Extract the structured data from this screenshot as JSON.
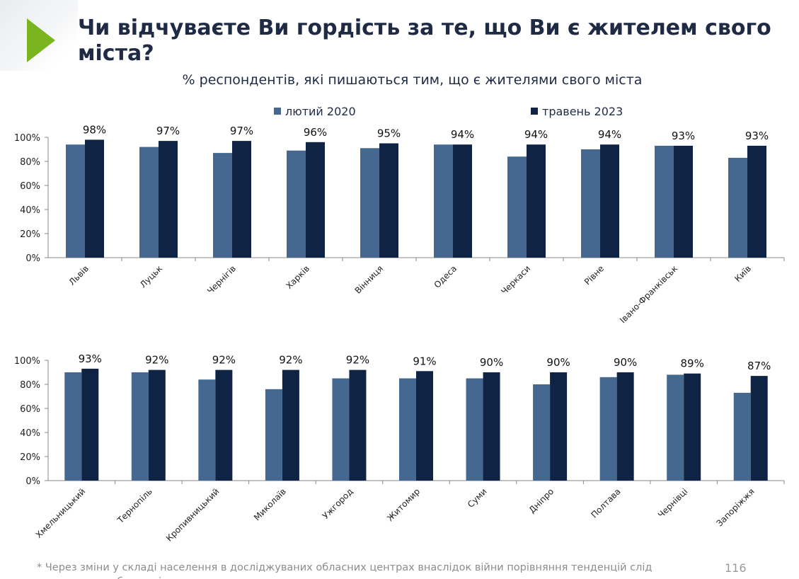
{
  "title": "Чи відчуваєте Ви гордість за те, що Ви є жителем свого міста?",
  "subtitle": "% респондентів, які пишаються тим, що є жителями свого міста",
  "footnote": "* Через зміни у складі населення в досліджуваних обласних центрах внаслідок війни порівняння тенденцій слід трактувати з обережністю",
  "page_number": "116",
  "colors": {
    "series_2020": "#44688f",
    "series_2023": "#0f2444",
    "accent": "#7ab41e"
  },
  "chart_data": [
    {
      "type": "bar",
      "legend_position": "top",
      "ylim": [
        0,
        100
      ],
      "yticks": [
        "0%",
        "20%",
        "40%",
        "60%",
        "80%",
        "100%"
      ],
      "categories": [
        "Львів",
        "Луцьк",
        "Чернігів",
        "Харків",
        "Вінниця",
        "Одеса",
        "Черкаси",
        "Рівне",
        "Івано-Франківськ",
        "Київ"
      ],
      "series": [
        {
          "name": "лютий 2020",
          "values": [
            94,
            92,
            87,
            89,
            91,
            94,
            84,
            90,
            93,
            83
          ]
        },
        {
          "name": "травень 2023",
          "values": [
            98,
            97,
            97,
            96,
            95,
            94,
            94,
            94,
            93,
            93
          ],
          "labels": [
            "98%",
            "97%",
            "97%",
            "96%",
            "95%",
            "94%",
            "94%",
            "94%",
            "93%",
            "93%"
          ]
        }
      ]
    },
    {
      "type": "bar",
      "ylim": [
        0,
        100
      ],
      "yticks": [
        "0%",
        "20%",
        "40%",
        "60%",
        "80%",
        "100%"
      ],
      "categories": [
        "Хмельницький",
        "Тернопіль",
        "Кропивницький",
        "Миколаїв",
        "Ужгород",
        "Житомир",
        "Суми",
        "Дніпро",
        "Полтава",
        "Чернівці",
        "Запоріжжя"
      ],
      "series": [
        {
          "name": "лютий 2020",
          "values": [
            90,
            90,
            84,
            76,
            85,
            85,
            85,
            80,
            86,
            88,
            73
          ]
        },
        {
          "name": "травень 2023",
          "values": [
            93,
            92,
            92,
            92,
            92,
            91,
            90,
            90,
            90,
            89,
            87
          ],
          "labels": [
            "93%",
            "92%",
            "92%",
            "92%",
            "92%",
            "91%",
            "90%",
            "90%",
            "90%",
            "89%",
            "87%"
          ]
        }
      ]
    }
  ]
}
